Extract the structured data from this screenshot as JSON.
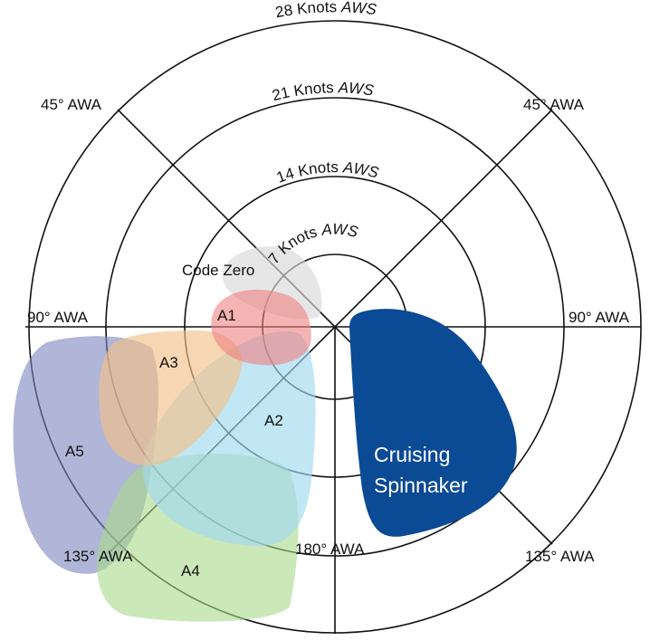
{
  "rings": [
    {
      "knots": "7",
      "label": "Knots",
      "suffix": "AWS"
    },
    {
      "knots": "14",
      "label": "Knots",
      "suffix": "AWS"
    },
    {
      "knots": "21",
      "label": "Knots",
      "suffix": "AWS"
    },
    {
      "knots": "28",
      "label": "Knots",
      "suffix": "AWS"
    }
  ],
  "angles": {
    "left_45": "45° AWA",
    "right_45": "45°  AWA",
    "left_90": "90° AWA",
    "right_90": "90° AWA",
    "left_135": "135° AWA",
    "right_135": "135° AWA",
    "bottom_180": "180° AWA"
  },
  "sails": {
    "code_zero": {
      "label": "Code Zero",
      "color": "#d9d9d9"
    },
    "a1": {
      "label": "A1",
      "color": "#f08080"
    },
    "a2": {
      "label": "A2",
      "color": "#9fd8ee"
    },
    "a3": {
      "label": "A3",
      "color": "#f3c28a"
    },
    "a4": {
      "label": "A4",
      "color": "#a9d98a"
    },
    "a5": {
      "label": "A5",
      "color": "#7c86bd"
    },
    "cruising": {
      "label_line1": "Cruising",
      "label_line2": "Spinnaker",
      "color": "#0b4a94"
    }
  }
}
